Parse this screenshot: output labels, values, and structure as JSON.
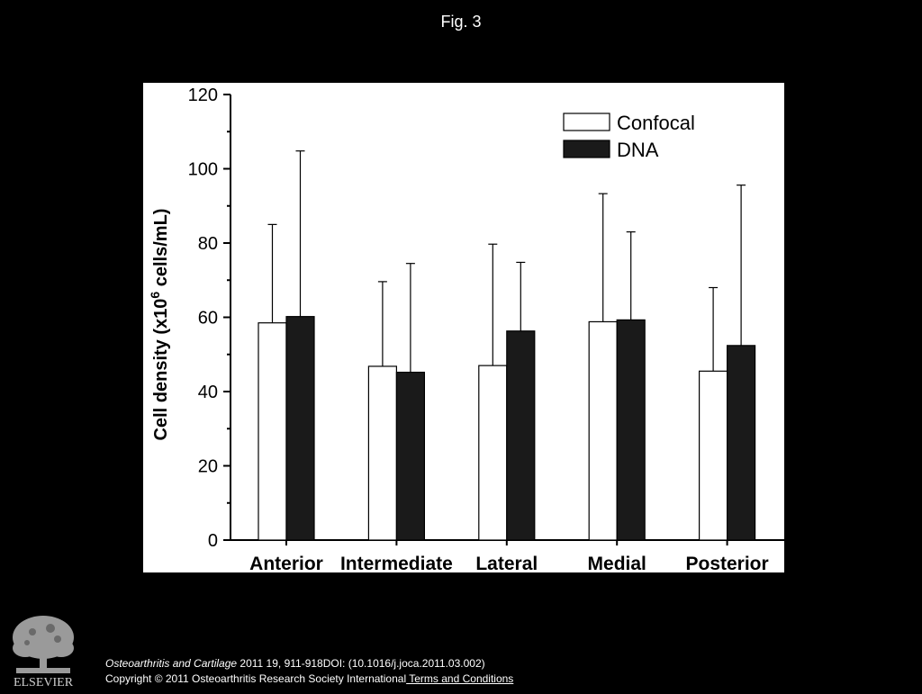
{
  "page": {
    "title": "Fig. 3"
  },
  "chart_data": {
    "type": "bar",
    "title": "",
    "xlabel": "",
    "ylabel_prefix": "Cell density (x10",
    "ylabel_sup": "6",
    "ylabel_suffix": " cells/mL)",
    "categories": [
      "Anterior",
      "Intermediate",
      "Lateral",
      "Medial",
      "Posterior"
    ],
    "series": [
      {
        "name": "Confocal",
        "values": [
          58.5,
          46.8,
          47,
          58.8,
          45.5
        ],
        "error": [
          26.5,
          22.8,
          32.7,
          34.5,
          22.5
        ],
        "fill": "#ffffff"
      },
      {
        "name": "DNA",
        "values": [
          60.2,
          45.2,
          56.3,
          59.3,
          52.4
        ],
        "error": [
          44.6,
          29.3,
          18.5,
          23.7,
          43.2
        ],
        "fill": "#1a1a1a"
      }
    ],
    "ylim": [
      0,
      120
    ],
    "yticks": [
      0,
      20,
      40,
      60,
      80,
      100,
      120
    ],
    "grid": false,
    "legend": "top-right",
    "error_bars": "upper"
  },
  "footer": {
    "logo_text": "ELSEVIER",
    "journal": "Osteoarthritis and Cartilage",
    "citation_rest": " 2011 19, 911-918DOI: (10.1016/j.joca.2011.03.002)",
    "copyright": "Copyright © 2011 Osteoarthritis Research Society International",
    "terms_link": " Terms and Conditions"
  }
}
